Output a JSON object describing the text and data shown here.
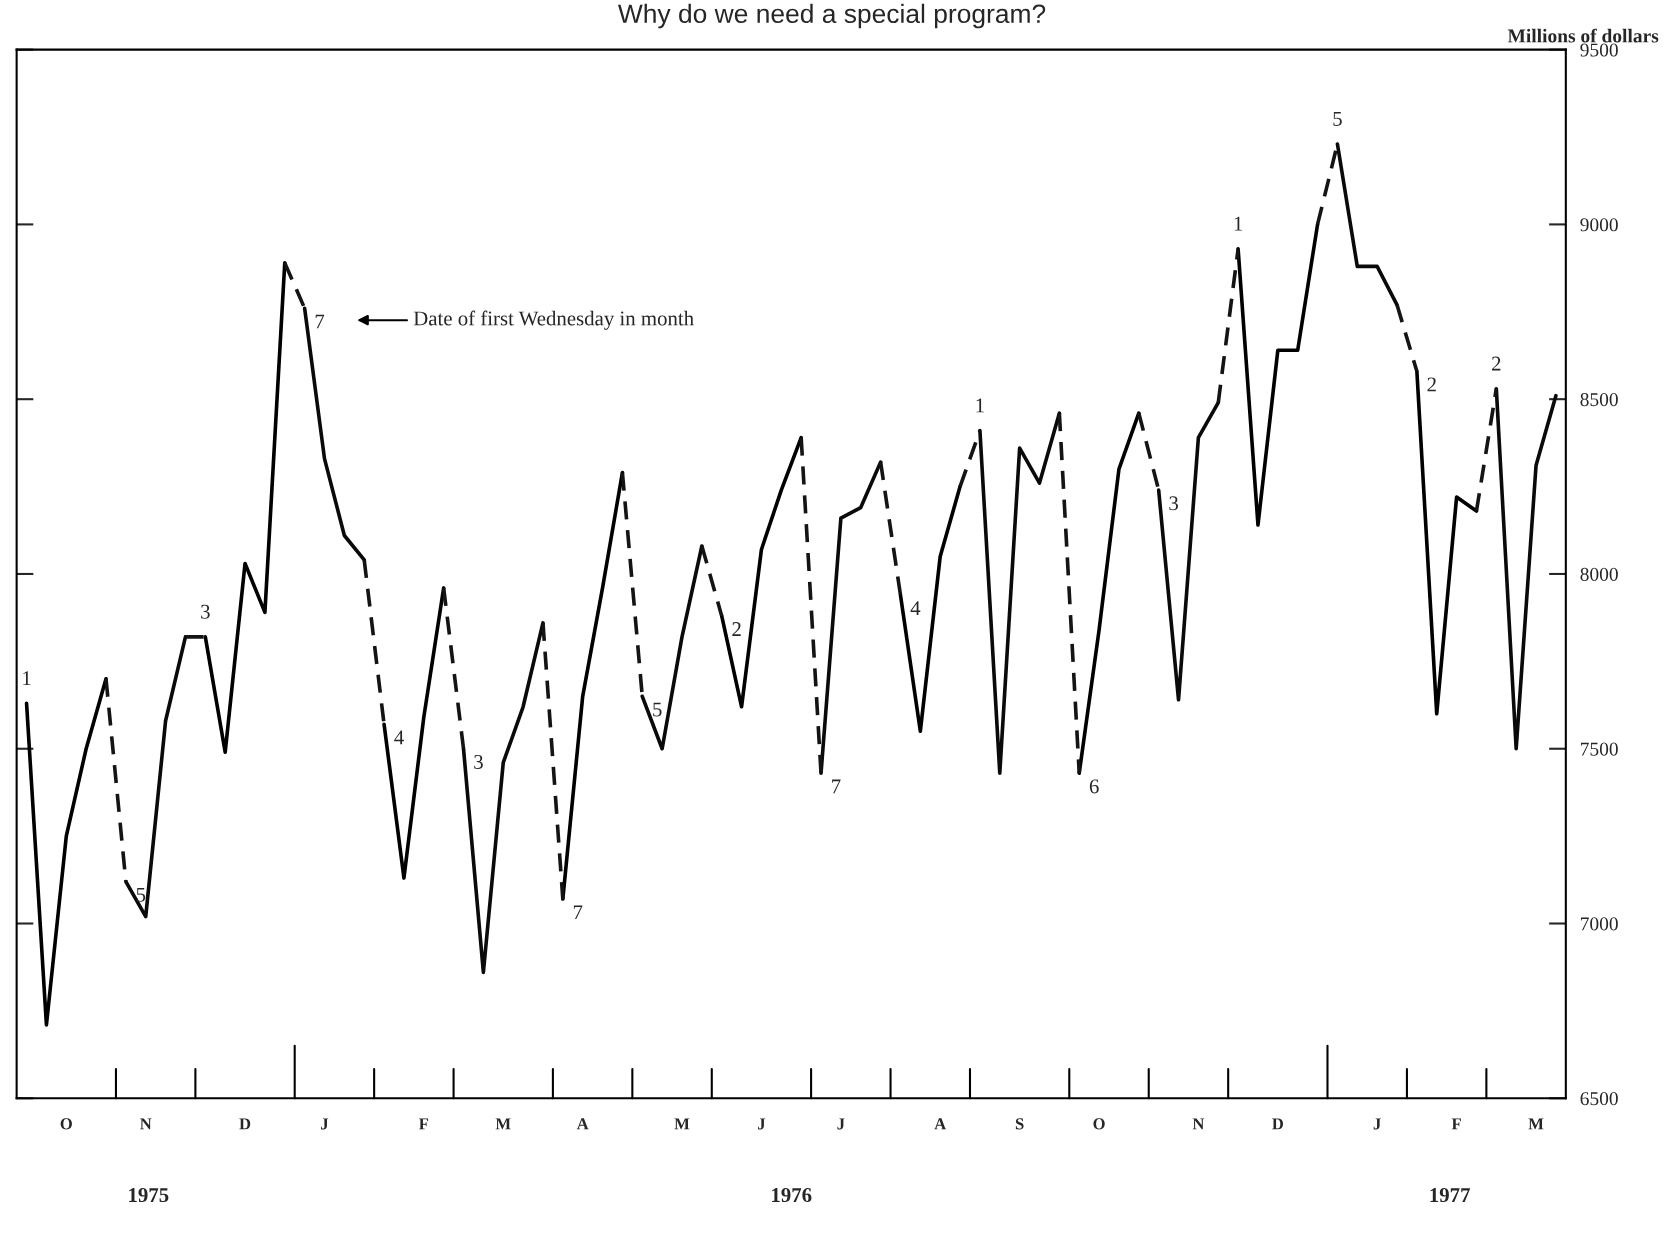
{
  "chart_data": {
    "type": "line",
    "title": "Why do we need a special program?",
    "ylabel": "Millions of dollars",
    "ylim": [
      6500,
      9500
    ],
    "yticks": [
      6500,
      7000,
      7500,
      8000,
      8500,
      9000,
      9500
    ],
    "categories": [
      null,
      null,
      "O",
      null,
      null,
      null,
      "N",
      null,
      null,
      null,
      null,
      "D",
      null,
      null,
      null,
      "J",
      null,
      null,
      null,
      null,
      "F",
      null,
      null,
      null,
      "M",
      null,
      null,
      null,
      "A",
      null,
      null,
      null,
      null,
      "M",
      null,
      null,
      null,
      "J",
      null,
      null,
      null,
      "J",
      null,
      null,
      null,
      null,
      "A",
      null,
      null,
      null,
      "S",
      null,
      null,
      null,
      "O",
      null,
      null,
      null,
      null,
      "N",
      null,
      null,
      null,
      "D",
      null,
      null,
      null,
      null,
      "J",
      null,
      null,
      null,
      "F",
      null,
      null,
      null,
      "M",
      null
    ],
    "grid": false,
    "legend": false,
    "series": [
      {
        "color": "#000000",
        "line_style": "solid",
        "values": [
          7630,
          6710,
          7250,
          7500,
          7700,
          null,
          null,
          null,
          null,
          7820,
          7490,
          8030,
          7890,
          8890,
          null,
          null,
          null,
          null,
          7570,
          7130,
          7590,
          7960,
          null,
          null,
          null,
          null,
          null,
          7070,
          7650,
          7960,
          8290,
          null,
          null,
          null,
          null,
          7880,
          7620,
          8070,
          8240,
          8390,
          null,
          null,
          null,
          null,
          7940,
          7550,
          8050,
          8250,
          null,
          null,
          null,
          null,
          null,
          7430,
          7840,
          8300,
          8460,
          null,
          null,
          null,
          null,
          8930,
          8140,
          8640,
          8640,
          9000,
          null,
          null,
          null,
          null,
          8580,
          7600,
          8220,
          8180,
          null,
          null,
          null,
          null
        ]
      },
      {
        "color": "#0a0a0a",
        "line_style": "solid",
        "values": [
          null,
          null,
          null,
          null,
          null,
          7120,
          7020,
          7580,
          7820,
          null,
          null,
          null,
          null,
          null,
          8760,
          8330,
          8110,
          8040,
          null,
          null,
          null,
          null,
          7500,
          6860,
          7460,
          7620,
          7860,
          null,
          null,
          null,
          null,
          7650,
          7500,
          7820,
          8080,
          null,
          null,
          null,
          null,
          null,
          7430,
          8160,
          8190,
          8320,
          null,
          null,
          null,
          null,
          8410,
          7430,
          8360,
          8260,
          8460,
          null,
          null,
          null,
          null,
          8240,
          7640,
          8390,
          8490,
          null,
          null,
          null,
          null,
          null,
          9230,
          8880,
          8880,
          8770,
          null,
          null,
          null,
          null,
          8530,
          7500,
          8310,
          8510
        ]
      },
      {
        "color": "#141414",
        "line_style": "dashed",
        "values": [
          null,
          null,
          null,
          null,
          7700,
          7120,
          null,
          null,
          7820,
          7820,
          null,
          null,
          null,
          8890,
          8760,
          null,
          null,
          8040,
          7570,
          null,
          null,
          7960,
          7500,
          null,
          null,
          null,
          7860,
          7070,
          null,
          null,
          8290,
          7650,
          null,
          null,
          8080,
          7880,
          null,
          null,
          null,
          8390,
          7430,
          null,
          null,
          8320,
          7940,
          null,
          null,
          8250,
          8410,
          null,
          null,
          null,
          8460,
          7430,
          null,
          null,
          8460,
          8240,
          null,
          null,
          8490,
          8930,
          null,
          null,
          null,
          9000,
          9230,
          null,
          null,
          8770,
          8580,
          null,
          null,
          8180,
          8530,
          null,
          null,
          null
        ]
      }
    ],
    "annotations": [
      "1",
      "5",
      "3",
      "7",
      "4",
      "3",
      "7",
      "5",
      "2",
      "7",
      "4",
      "1",
      "6",
      "3",
      "1",
      "5",
      "2",
      "2",
      "Date of first Wednesday in month",
      "1975",
      "1976",
      "1977"
    ]
  }
}
